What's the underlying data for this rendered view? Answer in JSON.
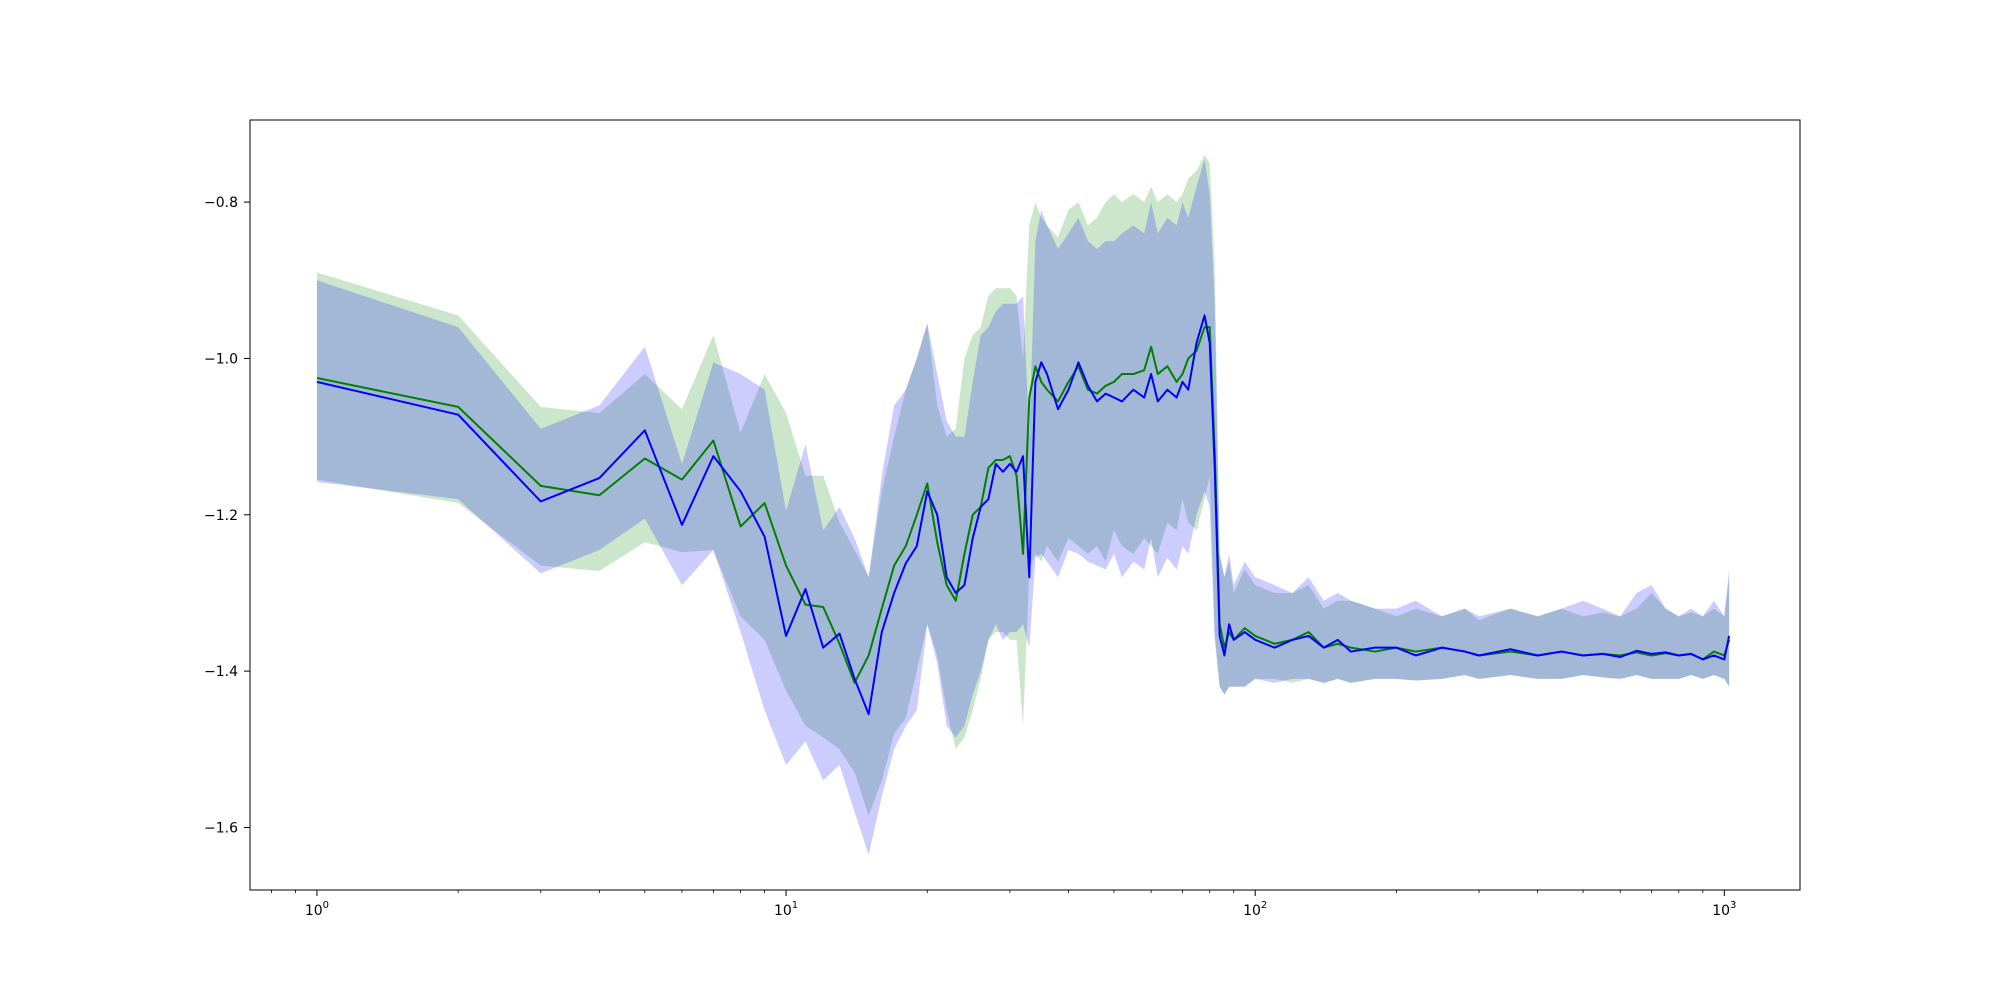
{
  "chart_data": {
    "type": "line",
    "title": "",
    "xlabel": "",
    "ylabel": "",
    "xscale": "log",
    "xlim": [
      0.72,
      1450
    ],
    "ylim": [
      -1.68,
      -0.695
    ],
    "grid": false,
    "legend": "none",
    "x_ticks": [
      {
        "value": 1,
        "base": "10",
        "exp": "0"
      },
      {
        "value": 10,
        "base": "10",
        "exp": "1"
      },
      {
        "value": 100,
        "base": "10",
        "exp": "2"
      },
      {
        "value": 1000,
        "base": "10",
        "exp": "3"
      }
    ],
    "y_ticks": [
      {
        "value": -0.8,
        "label": "−0.8"
      },
      {
        "value": -1.0,
        "label": "−1.0"
      },
      {
        "value": -1.2,
        "label": "−1.2"
      },
      {
        "value": -1.4,
        "label": "−1.4"
      },
      {
        "value": -1.6,
        "label": "−1.6"
      }
    ],
    "colors": {
      "green": "#008000",
      "blue": "#0000ff",
      "green_band": "#008000",
      "blue_band": "#0000ff"
    },
    "series": [
      {
        "color": "green",
        "x": [
          1,
          2,
          3,
          4,
          5,
          6,
          7,
          8,
          9,
          10,
          11,
          12,
          13,
          14,
          15,
          16,
          17,
          18,
          19,
          20,
          21,
          22,
          23,
          24,
          25,
          26,
          27,
          28,
          29,
          30,
          31,
          32,
          33,
          34,
          35,
          36,
          38,
          40,
          42,
          44,
          46,
          48,
          50,
          52,
          55,
          58,
          60,
          62,
          65,
          68,
          70,
          72,
          75,
          78,
          80,
          82,
          84,
          86,
          88,
          90,
          95,
          100,
          110,
          120,
          130,
          140,
          150,
          160,
          180,
          200,
          220,
          250,
          280,
          300,
          350,
          400,
          450,
          500,
          550,
          600,
          650,
          700,
          750,
          800,
          850,
          900,
          950,
          1000,
          1024
        ],
        "y": [
          -1.025,
          -1.062,
          -1.163,
          -1.175,
          -1.128,
          -1.155,
          -1.105,
          -1.215,
          -1.185,
          -1.265,
          -1.315,
          -1.318,
          -1.365,
          -1.415,
          -1.38,
          -1.32,
          -1.265,
          -1.24,
          -1.2,
          -1.16,
          -1.235,
          -1.29,
          -1.31,
          -1.25,
          -1.2,
          -1.19,
          -1.14,
          -1.13,
          -1.13,
          -1.125,
          -1.15,
          -1.25,
          -1.05,
          -1.01,
          -1.03,
          -1.04,
          -1.055,
          -1.03,
          -1.01,
          -1.04,
          -1.045,
          -1.035,
          -1.03,
          -1.02,
          -1.02,
          -1.015,
          -0.985,
          -1.02,
          -1.01,
          -1.03,
          -1.02,
          -1.0,
          -0.99,
          -0.96,
          -0.96,
          -1.12,
          -1.34,
          -1.37,
          -1.35,
          -1.36,
          -1.345,
          -1.355,
          -1.365,
          -1.36,
          -1.35,
          -1.37,
          -1.365,
          -1.37,
          -1.375,
          -1.37,
          -1.375,
          -1.37,
          -1.375,
          -1.38,
          -1.375,
          -1.38,
          -1.375,
          -1.38,
          -1.378,
          -1.38,
          -1.376,
          -1.38,
          -1.377,
          -1.38,
          -1.378,
          -1.385,
          -1.375,
          -1.38,
          -1.36
        ],
        "lower": [
          -1.155,
          -1.185,
          -1.265,
          -1.272,
          -1.235,
          -1.248,
          -1.245,
          -1.33,
          -1.36,
          -1.425,
          -1.47,
          -1.485,
          -1.5,
          -1.53,
          -1.585,
          -1.54,
          -1.48,
          -1.46,
          -1.4,
          -1.34,
          -1.38,
          -1.45,
          -1.5,
          -1.485,
          -1.45,
          -1.41,
          -1.36,
          -1.35,
          -1.35,
          -1.36,
          -1.36,
          -1.47,
          -1.27,
          -1.25,
          -1.26,
          -1.24,
          -1.26,
          -1.23,
          -1.24,
          -1.25,
          -1.24,
          -1.26,
          -1.22,
          -1.24,
          -1.25,
          -1.23,
          -1.24,
          -1.25,
          -1.21,
          -1.22,
          -1.18,
          -1.21,
          -1.22,
          -1.18,
          -1.15,
          -1.35,
          -1.42,
          -1.43,
          -1.42,
          -1.42,
          -1.42,
          -1.41,
          -1.41,
          -1.415,
          -1.41,
          -1.415,
          -1.41,
          -1.415,
          -1.41,
          -1.41,
          -1.412,
          -1.41,
          -1.405,
          -1.41,
          -1.405,
          -1.41,
          -1.41,
          -1.405,
          -1.408,
          -1.41,
          -1.405,
          -1.41,
          -1.41,
          -1.41,
          -1.405,
          -1.41,
          -1.405,
          -1.41,
          -1.42
        ],
        "upper": [
          -0.89,
          -0.945,
          -1.062,
          -1.07,
          -1.02,
          -1.065,
          -0.97,
          -1.095,
          -1.02,
          -1.07,
          -1.15,
          -1.15,
          -1.21,
          -1.245,
          -1.28,
          -1.17,
          -1.1,
          -1.04,
          -1.0,
          -0.955,
          -1.06,
          -1.1,
          -1.09,
          -1.0,
          -0.97,
          -0.96,
          -0.92,
          -0.91,
          -0.91,
          -0.91,
          -0.92,
          -1.0,
          -0.83,
          -0.8,
          -0.82,
          -0.83,
          -0.845,
          -0.81,
          -0.8,
          -0.83,
          -0.82,
          -0.8,
          -0.79,
          -0.8,
          -0.79,
          -0.8,
          -0.78,
          -0.8,
          -0.79,
          -0.8,
          -0.79,
          -0.77,
          -0.76,
          -0.74,
          -0.75,
          -0.88,
          -1.25,
          -1.28,
          -1.26,
          -1.3,
          -1.27,
          -1.29,
          -1.3,
          -1.3,
          -1.29,
          -1.32,
          -1.31,
          -1.31,
          -1.32,
          -1.33,
          -1.32,
          -1.33,
          -1.32,
          -1.335,
          -1.32,
          -1.33,
          -1.32,
          -1.33,
          -1.325,
          -1.33,
          -1.32,
          -1.3,
          -1.32,
          -1.33,
          -1.325,
          -1.33,
          -1.32,
          -1.33,
          -1.28
        ]
      },
      {
        "color": "blue",
        "x": [
          1,
          2,
          3,
          4,
          5,
          6,
          7,
          8,
          9,
          10,
          11,
          12,
          13,
          14,
          15,
          16,
          17,
          18,
          19,
          20,
          21,
          22,
          23,
          24,
          25,
          26,
          27,
          28,
          29,
          30,
          31,
          32,
          33,
          34,
          35,
          36,
          38,
          40,
          42,
          44,
          46,
          48,
          50,
          52,
          55,
          58,
          60,
          62,
          65,
          68,
          70,
          72,
          75,
          78,
          80,
          82,
          84,
          86,
          88,
          90,
          95,
          100,
          110,
          120,
          130,
          140,
          150,
          160,
          180,
          200,
          220,
          250,
          280,
          300,
          350,
          400,
          450,
          500,
          550,
          600,
          650,
          700,
          750,
          800,
          850,
          900,
          950,
          1000,
          1024
        ],
        "y": [
          -1.03,
          -1.072,
          -1.183,
          -1.153,
          -1.092,
          -1.213,
          -1.125,
          -1.17,
          -1.228,
          -1.355,
          -1.295,
          -1.37,
          -1.352,
          -1.41,
          -1.455,
          -1.35,
          -1.3,
          -1.262,
          -1.24,
          -1.17,
          -1.2,
          -1.28,
          -1.3,
          -1.29,
          -1.23,
          -1.19,
          -1.18,
          -1.135,
          -1.145,
          -1.135,
          -1.145,
          -1.125,
          -1.28,
          -1.03,
          -1.005,
          -1.02,
          -1.065,
          -1.04,
          -1.005,
          -1.035,
          -1.055,
          -1.045,
          -1.05,
          -1.055,
          -1.04,
          -1.05,
          -1.02,
          -1.055,
          -1.04,
          -1.05,
          -1.03,
          -1.04,
          -0.98,
          -0.945,
          -0.98,
          -1.14,
          -1.355,
          -1.38,
          -1.34,
          -1.36,
          -1.35,
          -1.36,
          -1.37,
          -1.36,
          -1.355,
          -1.37,
          -1.36,
          -1.375,
          -1.37,
          -1.37,
          -1.38,
          -1.37,
          -1.375,
          -1.38,
          -1.372,
          -1.38,
          -1.375,
          -1.38,
          -1.378,
          -1.382,
          -1.374,
          -1.378,
          -1.376,
          -1.38,
          -1.378,
          -1.385,
          -1.38,
          -1.385,
          -1.355
        ],
        "lower": [
          -1.158,
          -1.18,
          -1.275,
          -1.245,
          -1.205,
          -1.29,
          -1.245,
          -1.35,
          -1.45,
          -1.52,
          -1.49,
          -1.54,
          -1.52,
          -1.58,
          -1.635,
          -1.56,
          -1.5,
          -1.47,
          -1.45,
          -1.34,
          -1.39,
          -1.47,
          -1.485,
          -1.47,
          -1.43,
          -1.4,
          -1.36,
          -1.34,
          -1.36,
          -1.35,
          -1.35,
          -1.34,
          -1.37,
          -1.255,
          -1.25,
          -1.26,
          -1.28,
          -1.245,
          -1.25,
          -1.26,
          -1.265,
          -1.27,
          -1.25,
          -1.28,
          -1.26,
          -1.27,
          -1.23,
          -1.28,
          -1.255,
          -1.27,
          -1.24,
          -1.25,
          -1.2,
          -1.17,
          -1.19,
          -1.36,
          -1.42,
          -1.43,
          -1.42,
          -1.42,
          -1.42,
          -1.41,
          -1.415,
          -1.41,
          -1.41,
          -1.415,
          -1.41,
          -1.415,
          -1.41,
          -1.41,
          -1.412,
          -1.41,
          -1.405,
          -1.41,
          -1.405,
          -1.41,
          -1.41,
          -1.405,
          -1.408,
          -1.41,
          -1.405,
          -1.41,
          -1.41,
          -1.41,
          -1.405,
          -1.41,
          -1.405,
          -1.41,
          -1.42
        ],
        "upper": [
          -0.9,
          -0.96,
          -1.09,
          -1.06,
          -0.985,
          -1.135,
          -1.005,
          -1.02,
          -1.04,
          -1.195,
          -1.11,
          -1.22,
          -1.19,
          -1.23,
          -1.28,
          -1.15,
          -1.06,
          -1.04,
          -1.0,
          -0.955,
          -1.02,
          -1.08,
          -1.1,
          -1.1,
          -1.03,
          -0.97,
          -0.96,
          -0.94,
          -0.93,
          -0.93,
          -0.93,
          -0.92,
          -1.1,
          -0.85,
          -0.81,
          -0.83,
          -0.86,
          -0.84,
          -0.82,
          -0.85,
          -0.86,
          -0.85,
          -0.85,
          -0.84,
          -0.83,
          -0.84,
          -0.8,
          -0.84,
          -0.82,
          -0.83,
          -0.8,
          -0.82,
          -0.78,
          -0.745,
          -0.79,
          -0.93,
          -1.25,
          -1.28,
          -1.25,
          -1.29,
          -1.26,
          -1.28,
          -1.29,
          -1.3,
          -1.28,
          -1.31,
          -1.3,
          -1.31,
          -1.32,
          -1.32,
          -1.31,
          -1.33,
          -1.32,
          -1.33,
          -1.32,
          -1.33,
          -1.32,
          -1.31,
          -1.32,
          -1.33,
          -1.3,
          -1.29,
          -1.32,
          -1.33,
          -1.32,
          -1.33,
          -1.31,
          -1.33,
          -1.27
        ]
      }
    ]
  }
}
